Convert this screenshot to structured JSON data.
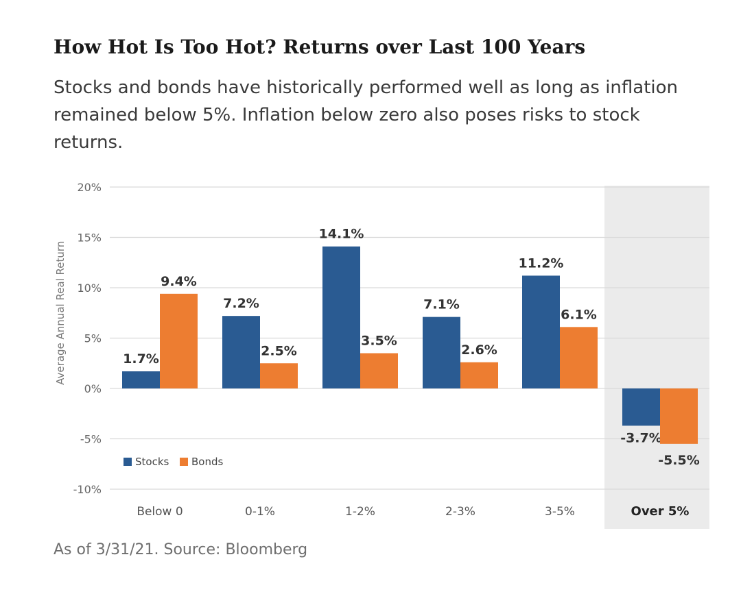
{
  "title": "How Hot Is Too Hot? Returns over Last 100 Years",
  "subtitle": "Stocks and bonds have historically performed well as long as inflation remained below 5%. Inflation below zero also poses risks to stock returns.",
  "source": "As of 3/31/21. Source: Bloomberg",
  "colors": {
    "stocks": "#2a5b92",
    "bonds": "#ed7d31",
    "highlight_bg": "#ebebeb",
    "grid": "#d9d9d9"
  },
  "chart_data": {
    "type": "bar",
    "ylabel": "Average Annual Real Return",
    "ylim": [
      -10,
      20
    ],
    "yticks": [
      20,
      15,
      10,
      5,
      0,
      -5,
      -10
    ],
    "ytick_labels": [
      "20%",
      "15%",
      "10%",
      "5%",
      "0%",
      "-5%",
      "-10%"
    ],
    "grid": true,
    "legend_position": "bottom-left",
    "categories": [
      "Below 0",
      "0-1%",
      "1-2%",
      "2-3%",
      "3-5%",
      "Over 5%"
    ],
    "highlighted_category": "Over 5%",
    "series": [
      {
        "name": "Stocks",
        "values": [
          1.7,
          7.2,
          14.1,
          7.1,
          11.2,
          -3.7
        ],
        "labels": [
          "1.7%",
          "7.2%",
          "14.1%",
          "7.1%",
          "11.2%",
          "-3.7%"
        ]
      },
      {
        "name": "Bonds",
        "values": [
          9.4,
          2.5,
          3.5,
          2.6,
          6.1,
          -5.5
        ],
        "labels": [
          "9.4%",
          "2.5%",
          "3.5%",
          "2.6%",
          "6.1%",
          "-5.5%"
        ]
      }
    ]
  }
}
